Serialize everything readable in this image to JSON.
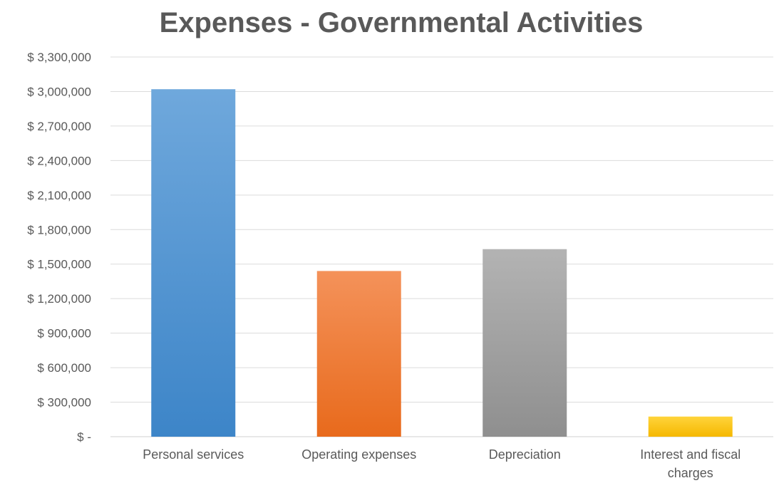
{
  "chart_data": {
    "type": "bar",
    "title": "Expenses - Governmental Activities",
    "xlabel": "",
    "ylabel": "",
    "categories": [
      "Personal services",
      "Operating expenses",
      "Depreciation",
      "Interest and fiscal charges"
    ],
    "category_lines": [
      [
        "Personal services"
      ],
      [
        "Operating expenses"
      ],
      [
        "Depreciation"
      ],
      [
        "Interest and fiscal",
        "charges"
      ]
    ],
    "values": [
      3020000,
      1440000,
      1630000,
      175000
    ],
    "ylim": [
      0,
      3300000
    ],
    "yticks": [
      0,
      300000,
      600000,
      900000,
      1200000,
      1500000,
      1800000,
      2100000,
      2400000,
      2700000,
      3000000,
      3300000
    ],
    "ytick_labels": [
      "$ -",
      "$ 300,000",
      "$ 600,000",
      "$ 900,000",
      "$ 1,200,000",
      "$ 1,500,000",
      "$ 1,800,000",
      "$ 2,100,000",
      "$ 2,400,000",
      "$ 2,700,000",
      "$ 3,000,000",
      "$ 3,300,000"
    ],
    "grid": true,
    "colors": [
      [
        "#6fa8dc",
        "#3d85c8"
      ],
      [
        "#f4925a",
        "#e86a1c"
      ],
      [
        "#b3b3b3",
        "#8f8f8f"
      ],
      [
        "#ffd43b",
        "#f5b800"
      ]
    ]
  }
}
